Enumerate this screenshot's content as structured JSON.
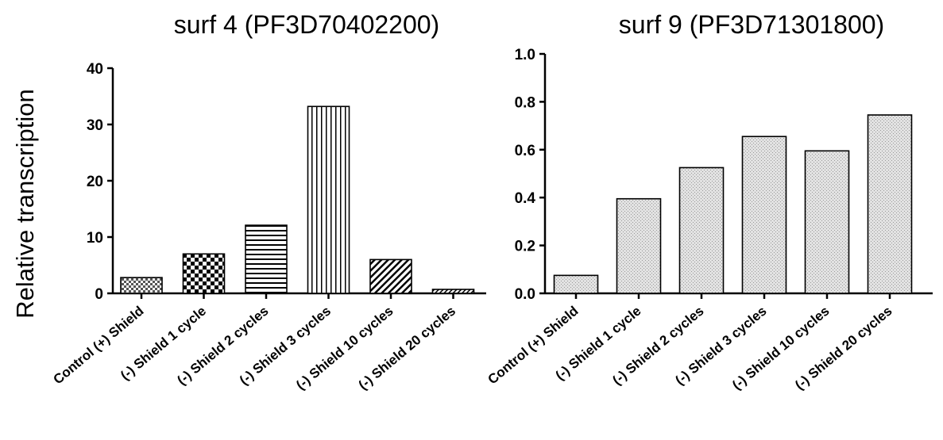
{
  "figure": {
    "ylabel": "Relative transcription"
  },
  "chart_data": [
    {
      "type": "bar",
      "title": "surf 4 (PF3D70402200)",
      "ylabel": "Relative transcription",
      "xlabel": "",
      "ylim": [
        0,
        40
      ],
      "yticks": [
        "0",
        "10",
        "20",
        "30",
        "40"
      ],
      "grid": false,
      "categories": [
        "Control (+) Shield",
        "(-) Shield 1 cycle",
        "(-) Shield 2 cycles",
        "(-) Shield 3 cycles",
        "(-) Shield 10 cycles",
        "(-) Shield 20 cycles"
      ],
      "values": [
        2.8,
        7.0,
        12.1,
        33.2,
        6.0,
        0.7
      ],
      "fills": [
        "small-check",
        "large-check",
        "horizontal-lines",
        "vertical-lines",
        "diagonal-lines",
        "fine-diagonal-lines"
      ]
    },
    {
      "type": "bar",
      "title": "surf 9 (PF3D71301800)",
      "ylabel": "",
      "xlabel": "",
      "ylim": [
        0,
        1.0
      ],
      "yticks": [
        "0.0",
        "0.2",
        "0.4",
        "0.6",
        "0.8",
        "1.0"
      ],
      "grid": false,
      "categories": [
        "Control (+) Shield",
        "(-) Shield 1 cycle",
        "(-) Shield 2 cycles",
        "(-) Shield 3 cycles",
        "(-) Shield 10 cycles",
        "(-) Shield 20 cycles"
      ],
      "values": [
        0.075,
        0.395,
        0.525,
        0.655,
        0.595,
        0.745
      ],
      "fills": [
        "dot-shading",
        "dot-shading",
        "dot-shading",
        "dot-shading",
        "dot-shading",
        "dot-shading"
      ]
    }
  ]
}
